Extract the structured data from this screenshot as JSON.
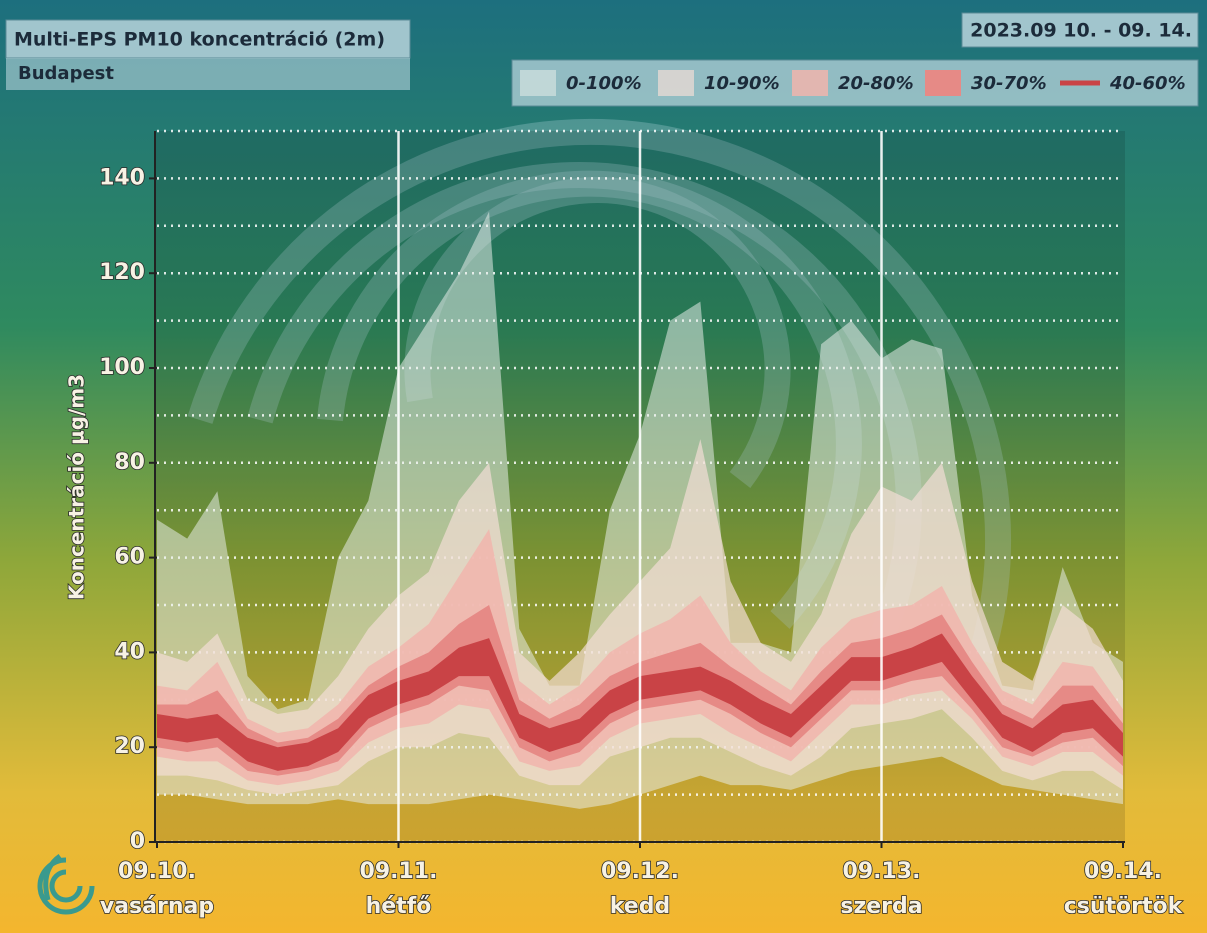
{
  "chart_data": {
    "type": "band",
    "title": "Multi-EPS PM10 koncentráció (2m)",
    "subtitle": "Budapest",
    "date_range": "2023.09 10. - 09. 14.",
    "y_label": "Koncentráció µg/m3",
    "x": [
      0,
      3,
      6,
      9,
      12,
      15,
      18,
      21,
      24,
      27,
      30,
      33,
      36,
      39,
      42,
      45,
      48,
      51,
      54,
      57,
      60,
      63,
      66,
      69,
      72,
      75,
      78,
      81,
      84,
      87,
      90,
      93,
      96
    ],
    "xlim": [
      0,
      96
    ],
    "xticks": [
      {
        "value": 0,
        "label": "09.10.",
        "sublabel": "vasárnap"
      },
      {
        "value": 24,
        "label": "09.11.",
        "sublabel": "hétfő"
      },
      {
        "value": 48,
        "label": "09.12.",
        "sublabel": "kedd"
      },
      {
        "value": 72,
        "label": "09.13.",
        "sublabel": "szerda"
      },
      {
        "value": 96,
        "label": "09.14.",
        "sublabel": "csütörtök"
      }
    ],
    "ylim": [
      0,
      150
    ],
    "yticks": [
      0,
      20,
      40,
      60,
      80,
      100,
      120,
      140
    ],
    "y_minor_ticks": [
      10,
      30,
      50,
      70,
      90,
      110,
      130,
      150
    ],
    "grid": true,
    "series": [
      {
        "name": "0-100%",
        "color": "#e9eeeb88",
        "low": [
          10,
          10,
          9,
          8,
          8,
          8,
          9,
          8,
          8,
          8,
          9,
          10,
          9,
          8,
          7,
          8,
          10,
          12,
          14,
          12,
          12,
          11,
          13,
          15,
          16,
          17,
          18,
          15,
          12,
          11,
          10,
          9,
          8
        ],
        "high": [
          68,
          64,
          74,
          35,
          28,
          30,
          60,
          72,
          100,
          110,
          120,
          133,
          45,
          33,
          33,
          70,
          86,
          110,
          114,
          42,
          42,
          40,
          105,
          110,
          102,
          106,
          104,
          52,
          33,
          32,
          58,
          42,
          38
        ]
      },
      {
        "name": "10-90%",
        "color": "#f3ded6b0",
        "low": [
          14,
          14,
          13,
          11,
          10,
          11,
          12,
          17,
          20,
          20,
          23,
          22,
          14,
          12,
          12,
          18,
          20,
          22,
          22,
          19,
          16,
          14,
          18,
          24,
          25,
          26,
          28,
          22,
          15,
          13,
          15,
          15,
          11
        ],
        "high": [
          40,
          38,
          44,
          30,
          27,
          28,
          35,
          45,
          52,
          57,
          72,
          80,
          40,
          34,
          40,
          48,
          55,
          62,
          85,
          55,
          42,
          38,
          48,
          65,
          75,
          72,
          80,
          55,
          38,
          34,
          50,
          45,
          34
        ]
      },
      {
        "name": "20-80%",
        "color": "#f1b5acd8",
        "low": [
          18,
          17,
          17,
          13,
          12,
          13,
          15,
          21,
          24,
          25,
          29,
          28,
          17,
          15,
          16,
          22,
          25,
          26,
          27,
          23,
          20,
          17,
          23,
          29,
          29,
          31,
          32,
          26,
          18,
          16,
          19,
          19,
          14
        ],
        "high": [
          33,
          32,
          38,
          26,
          23,
          24,
          29,
          37,
          41,
          46,
          56,
          66,
          34,
          29,
          33,
          40,
          44,
          47,
          52,
          42,
          36,
          32,
          41,
          47,
          49,
          50,
          54,
          42,
          32,
          29,
          38,
          37,
          28
        ]
      },
      {
        "name": "30-70%",
        "color": "#e68a86",
        "low": [
          20,
          19,
          20,
          15,
          14,
          15,
          17,
          24,
          27,
          29,
          33,
          32,
          20,
          17,
          19,
          25,
          28,
          29,
          30,
          27,
          23,
          20,
          26,
          32,
          32,
          34,
          35,
          28,
          20,
          18,
          21,
          22,
          16
        ],
        "high": [
          29,
          29,
          32,
          24,
          21,
          22,
          26,
          33,
          37,
          40,
          46,
          50,
          30,
          26,
          29,
          35,
          38,
          40,
          42,
          37,
          33,
          29,
          36,
          42,
          43,
          45,
          48,
          38,
          29,
          26,
          33,
          33,
          25
        ]
      },
      {
        "name": "40-60%",
        "color": "#c94346",
        "low": [
          22,
          21,
          22,
          17,
          15,
          16,
          19,
          26,
          29,
          31,
          35,
          35,
          22,
          19,
          21,
          27,
          30,
          31,
          32,
          29,
          25,
          22,
          28,
          34,
          34,
          36,
          38,
          30,
          22,
          19,
          23,
          24,
          18
        ],
        "high": [
          27,
          26,
          27,
          22,
          20,
          21,
          24,
          31,
          34,
          36,
          41,
          43,
          27,
          24,
          26,
          32,
          35,
          36,
          37,
          34,
          30,
          27,
          33,
          39,
          39,
          41,
          44,
          35,
          27,
          24,
          29,
          30,
          23
        ]
      }
    ]
  }
}
